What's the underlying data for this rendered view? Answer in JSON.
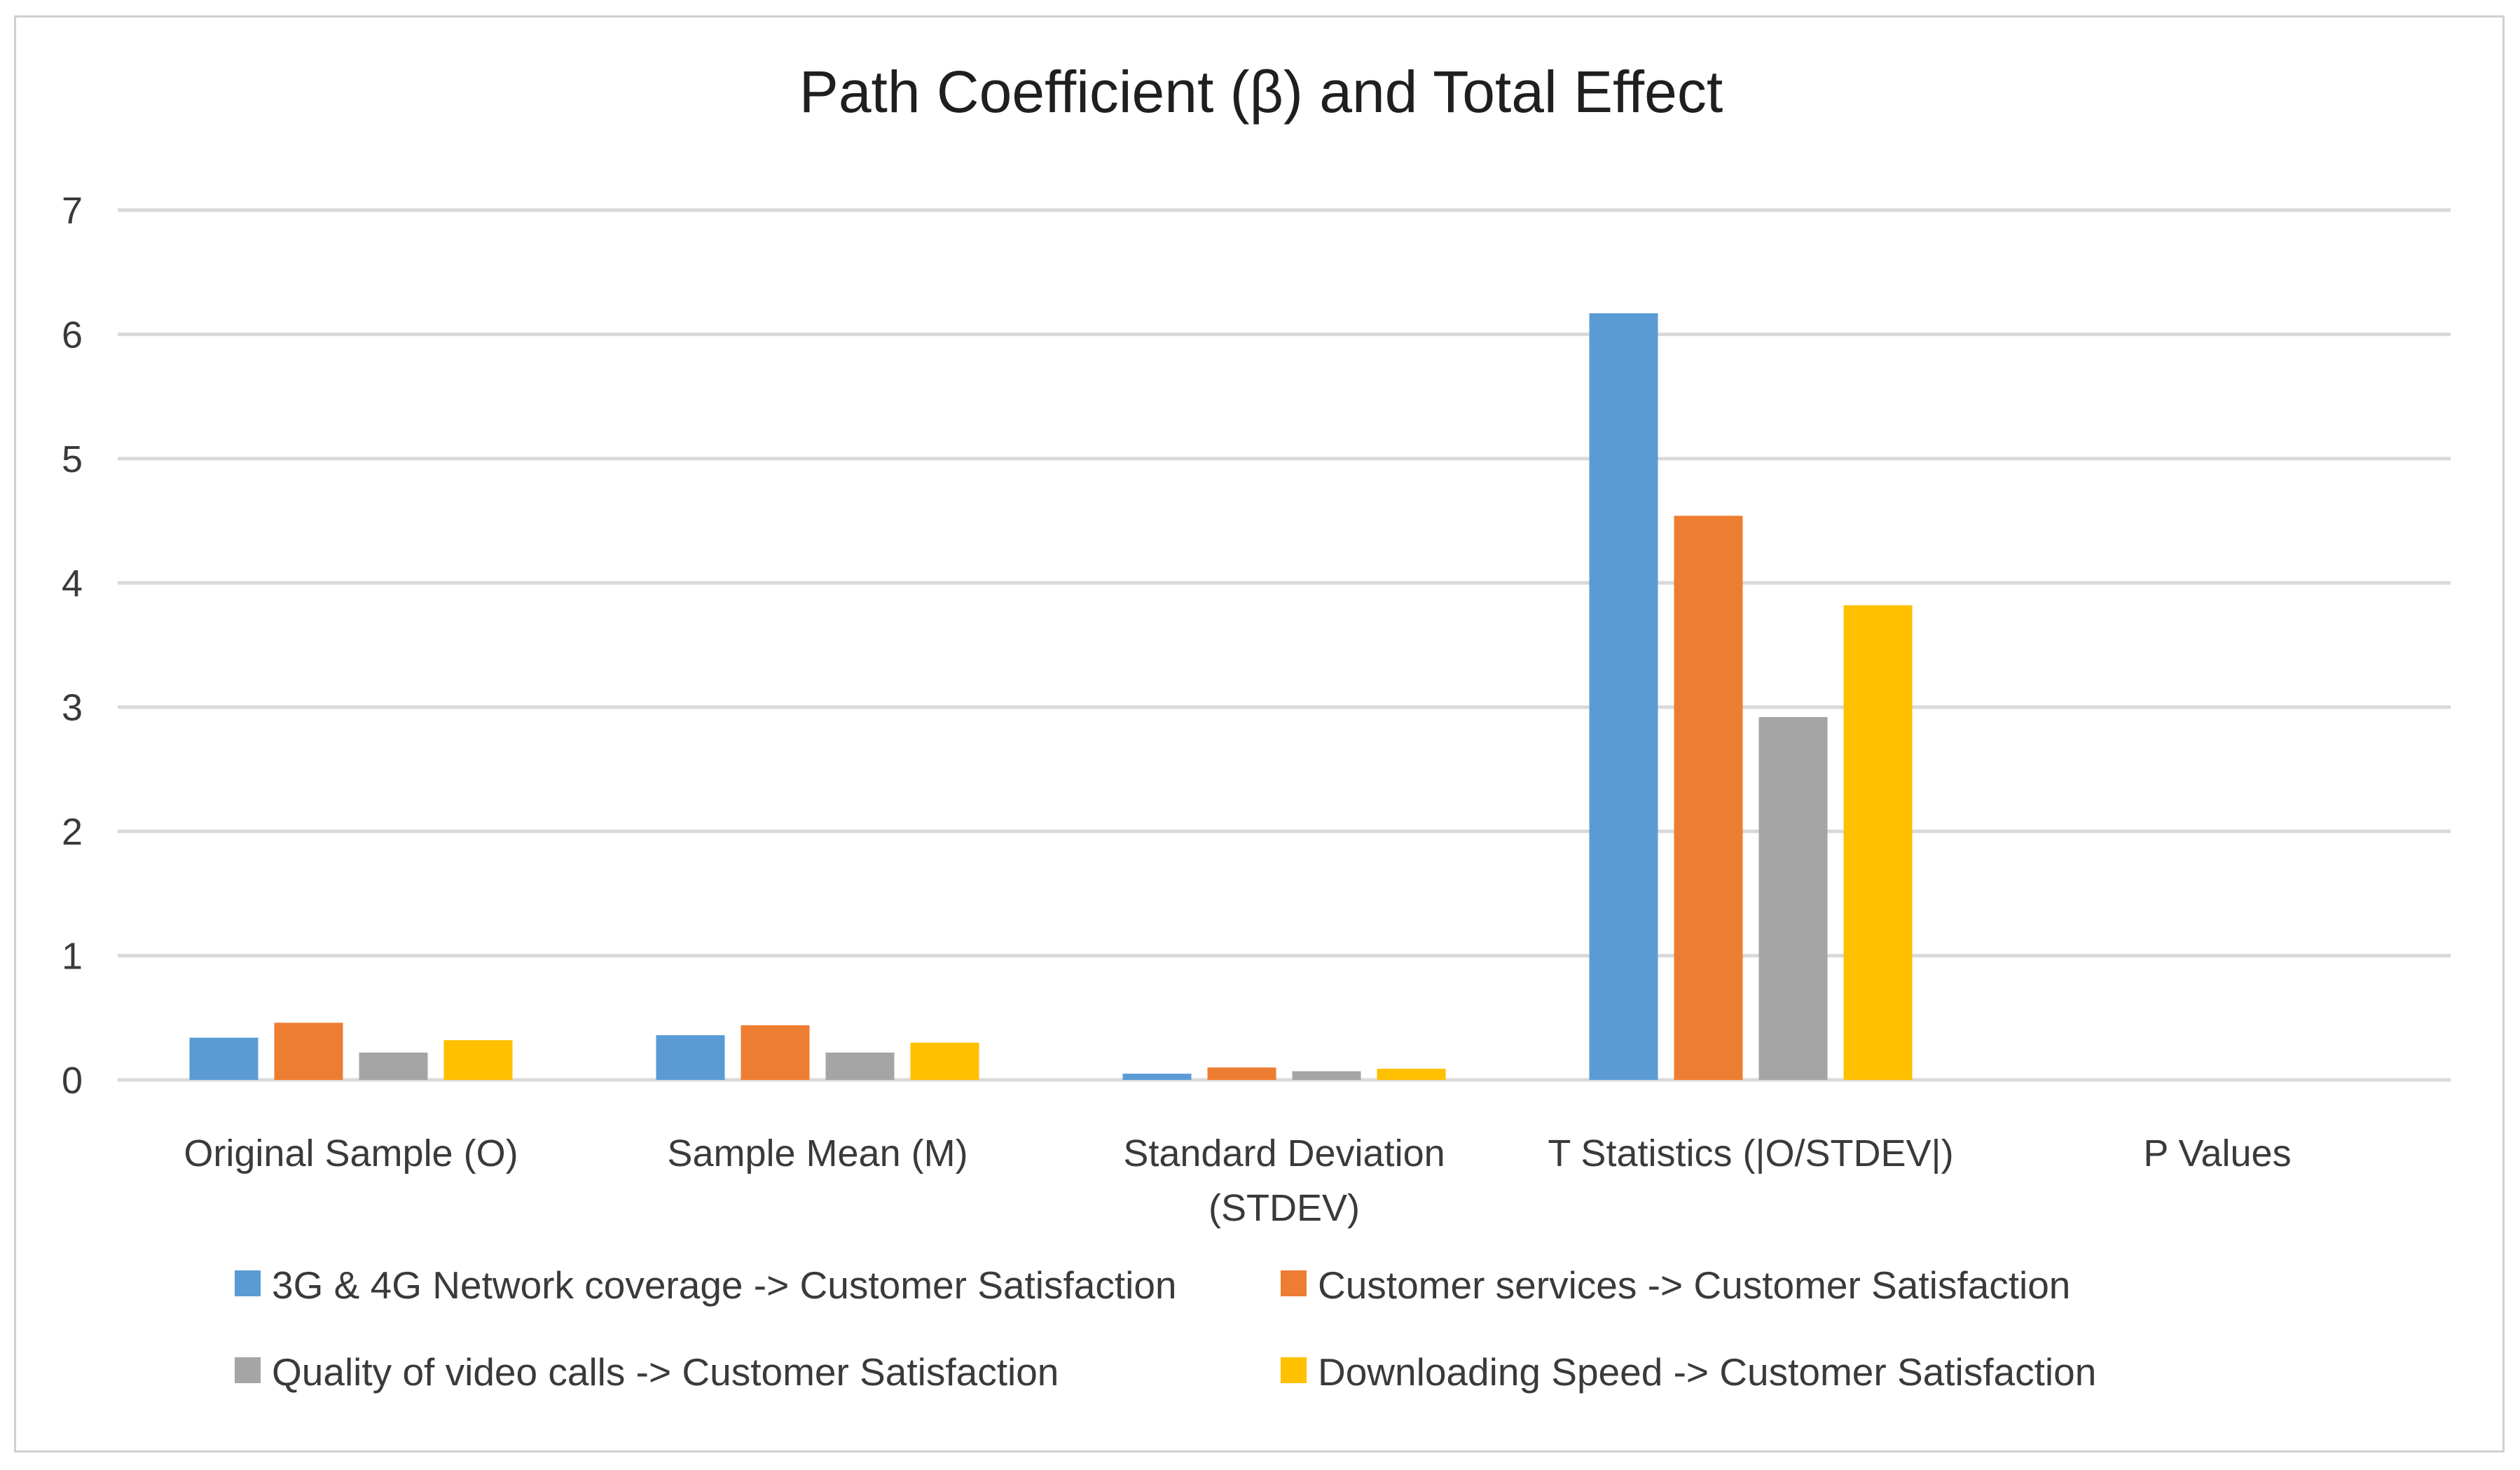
{
  "chart_data": {
    "type": "bar",
    "title": "Path Coefficient (β) and Total Effect",
    "xlabel": "",
    "ylabel": "",
    "ylim": [
      0,
      7
    ],
    "yticks": [
      0,
      1,
      2,
      3,
      4,
      5,
      6,
      7
    ],
    "grid": true,
    "legend_position": "bottom",
    "categories": [
      [
        "Original Sample (O)"
      ],
      [
        "Sample Mean (M)"
      ],
      [
        "Standard Deviation",
        "(STDEV)"
      ],
      [
        "T Statistics (|O/STDEV|)"
      ],
      [
        "P Values"
      ]
    ],
    "series": [
      {
        "name": "3G & 4G Network coverage -> Customer Satisfaction",
        "color": "#5b9bd5",
        "values": [
          0.34,
          0.36,
          0.05,
          6.17,
          0.0
        ]
      },
      {
        "name": "Customer services -> Customer Satisfaction",
        "color": "#ed7d31",
        "values": [
          0.46,
          0.44,
          0.1,
          4.54,
          0.0
        ]
      },
      {
        "name": "Quality of video calls -> Customer Satisfaction",
        "color": "#a5a5a5",
        "values": [
          0.22,
          0.22,
          0.07,
          2.92,
          0.0
        ]
      },
      {
        "name": "Downloading Speed -> Customer Satisfaction",
        "color": "#ffc000",
        "values": [
          0.32,
          0.3,
          0.09,
          3.82,
          0.0
        ]
      }
    ]
  }
}
